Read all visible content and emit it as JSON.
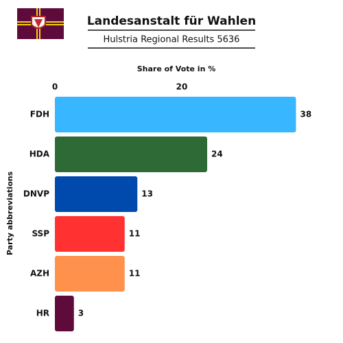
{
  "chart_data": {
    "type": "bar",
    "orientation": "horizontal",
    "title": "Landesanstalt für Wahlen",
    "subtitle": "Hulstria Regional Results 5636",
    "x_label": "Share of Vote in %",
    "y_label": "Party abbreviations",
    "categories": [
      "FDH",
      "HDA",
      "DNVP",
      "SSP",
      "AZH",
      "HR"
    ],
    "values": [
      38,
      24,
      13,
      11,
      11,
      3
    ],
    "colors": [
      "#38b6ff",
      "#2d6a35",
      "#004aad",
      "#ff3131",
      "#ff914d",
      "#5e0b3c"
    ],
    "xlim": [
      0,
      40
    ],
    "xticks": [
      0,
      20
    ],
    "grid": false
  }
}
